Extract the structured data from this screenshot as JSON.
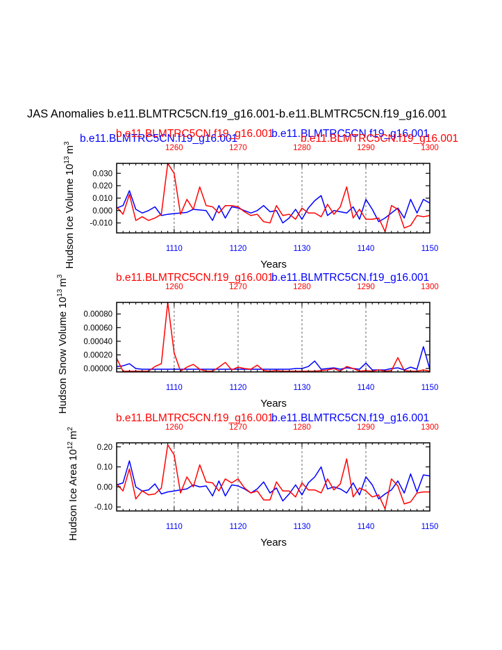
{
  "title": "JAS Anomalies b.e11.BLMTRC5CN.f19_g16.001-b.e11.BLMTRC5CN.f19_g16.001",
  "colors": {
    "series_a": "#0000ff",
    "series_b": "#ff0000",
    "grid": "#999999",
    "axis": "#000000"
  },
  "labels": {
    "xlabel": "Years",
    "series_a_name": "b.e11.BLMTRC5CN.f19_g16.001",
    "series_b_name": "b.e11.BLMTRC5CN.f19_g16.001"
  },
  "chart_data": [
    {
      "type": "line",
      "ylabel": "Hudson Ice Volume 10^13 m^3",
      "ylabel_main": "Hudson Ice Volume 10",
      "ylabel_exp": "13",
      "ylabel_unit": "m",
      "ylabel_unit_exp": "3",
      "xlabel": "Years",
      "xlim": [
        1101,
        1150
      ],
      "ylim": [
        -0.018,
        0.038
      ],
      "bottom_ticks": [
        "1110",
        "1120",
        "1130",
        "1140",
        "1150"
      ],
      "bottom_tick_values": [
        1110,
        1120,
        1130,
        1140,
        1150
      ],
      "top_ticks": [
        "1260",
        "1270",
        "1280",
        "1290",
        "1300"
      ],
      "y_ticks": [
        "0.030",
        "0.020",
        "0.010",
        "0.000",
        "-0.010"
      ],
      "y_tick_values": [
        0.03,
        0.02,
        0.01,
        0.0,
        -0.01
      ],
      "grid_x_values": [
        1110,
        1120,
        1130,
        1140
      ],
      "x": [
        1101,
        1102,
        1103,
        1104,
        1105,
        1106,
        1107,
        1108,
        1109,
        1110,
        1111,
        1112,
        1113,
        1114,
        1115,
        1116,
        1117,
        1118,
        1119,
        1120,
        1121,
        1122,
        1123,
        1124,
        1125,
        1126,
        1127,
        1128,
        1129,
        1130,
        1131,
        1132,
        1133,
        1134,
        1135,
        1136,
        1137,
        1138,
        1139,
        1140,
        1141,
        1142,
        1143,
        1144,
        1145,
        1146,
        1147,
        1148,
        1149,
        1150
      ],
      "series": [
        {
          "name": "b.e11.BLMTRC5CN.f19_g16.001",
          "color": "blue",
          "values": [
            0.002,
            0.004,
            0.016,
            0.001,
            -0.002,
            0.0,
            0.003,
            -0.004,
            -0.003,
            -0.0025,
            -0.002,
            -0.0015,
            0.001,
            0.0005,
            0.0,
            -0.008,
            0.004,
            -0.006,
            0.003,
            0.002,
            0.0,
            -0.002,
            0.0,
            0.004,
            -0.001,
            0.0,
            -0.01,
            -0.006,
            0.001,
            -0.007,
            0.002,
            0.008,
            0.012,
            -0.004,
            0.0,
            -0.001,
            -0.002,
            0.003,
            -0.007,
            0.009,
            0.001,
            -0.009,
            -0.006,
            -0.002,
            0.002,
            -0.006,
            0.009,
            -0.002,
            0.009,
            0.006
          ]
        },
        {
          "name": "b.e11.BLMTRC5CN.f19_g16.001",
          "color": "red",
          "values": [
            0.003,
            -0.003,
            0.013,
            -0.008,
            -0.005,
            -0.008,
            -0.006,
            -0.003,
            0.038,
            0.03,
            -0.003,
            0.009,
            0.001,
            0.019,
            0.004,
            0.003,
            -0.002,
            0.004,
            0.004,
            0.003,
            -0.001,
            -0.004,
            -0.003,
            -0.009,
            -0.01,
            0.004,
            -0.004,
            -0.003,
            -0.007,
            0.002,
            -0.002,
            -0.002,
            -0.005,
            0.005,
            -0.003,
            0.003,
            0.019,
            -0.006,
            0.001,
            -0.007,
            -0.007,
            -0.006,
            -0.017,
            0.004,
            0.001,
            -0.014,
            -0.012,
            -0.004,
            -0.005,
            -0.004
          ]
        }
      ]
    },
    {
      "type": "line",
      "ylabel": "Hudson Snow Volume 10^13 m^3",
      "ylabel_main": "Hudson Snow Volume 10",
      "ylabel_exp": "13",
      "ylabel_unit": "m",
      "ylabel_unit_exp": "3",
      "xlabel": "Years",
      "xlim": [
        1101,
        1150
      ],
      "ylim": [
        -5e-05,
        0.00097
      ],
      "bottom_ticks": [
        "1110",
        "1120",
        "1130",
        "1140",
        "1150"
      ],
      "bottom_tick_values": [
        1110,
        1120,
        1130,
        1140,
        1150
      ],
      "top_ticks": [
        "1260",
        "1270",
        "1280",
        "1290",
        "1300"
      ],
      "y_ticks": [
        "0.00080",
        "0.00060",
        "0.00040",
        "0.00020",
        "0.00000"
      ],
      "y_tick_values": [
        0.0008,
        0.0006,
        0.0004,
        0.0002,
        0.0
      ],
      "grid_x_values": [
        1110,
        1120,
        1130,
        1140
      ],
      "x": [
        1101,
        1102,
        1103,
        1104,
        1105,
        1106,
        1107,
        1108,
        1109,
        1110,
        1111,
        1112,
        1113,
        1114,
        1115,
        1116,
        1117,
        1118,
        1119,
        1120,
        1121,
        1122,
        1123,
        1124,
        1125,
        1126,
        1127,
        1128,
        1129,
        1130,
        1131,
        1132,
        1133,
        1134,
        1135,
        1136,
        1137,
        1138,
        1139,
        1140,
        1141,
        1142,
        1143,
        1144,
        1145,
        1146,
        1147,
        1148,
        1149,
        1150
      ],
      "series": [
        {
          "name": "b.e11.BLMTRC5CN.f19_g16.001",
          "color": "blue",
          "values": [
            3e-05,
            4e-05,
            7e-05,
            0.0,
            -1e-05,
            -1e-05,
            -1e-05,
            -1e-05,
            -1e-05,
            -1e-05,
            -1e-05,
            -1e-05,
            -1e-05,
            -1e-05,
            -1e-05,
            -1e-05,
            -1e-05,
            -1e-05,
            -1e-05,
            -1e-05,
            -1e-05,
            -1e-05,
            -1e-05,
            -1e-05,
            -1e-05,
            -1e-05,
            -1e-05,
            -1e-05,
            0.0,
            0.0,
            3e-05,
            0.00011,
            -1e-05,
            0.0,
            1e-05,
            -1e-05,
            1e-05,
            0.0,
            -1e-05,
            8e-05,
            -2e-05,
            -2e-05,
            -2e-05,
            0.0,
            1e-05,
            -2e-05,
            2e-05,
            -1e-05,
            0.00032,
            -1e-05
          ]
        },
        {
          "name": "b.e11.BLMTRC5CN.f19_g16.001",
          "color": "red",
          "values": [
            0.00015,
            -4e-05,
            -4e-05,
            -4e-05,
            -4e-05,
            -4e-05,
            3e-05,
            7e-05,
            0.00097,
            0.00023,
            -4e-05,
            2e-05,
            6e-05,
            -1e-05,
            -4e-05,
            -4e-05,
            2e-05,
            9e-05,
            -2e-05,
            2e-05,
            0.0,
            -1e-05,
            5e-05,
            -3e-05,
            -4e-05,
            -3e-05,
            -4e-05,
            -4e-05,
            -4e-05,
            -4e-05,
            -4e-05,
            -4e-05,
            -3e-05,
            -2e-05,
            0.0,
            -4e-05,
            3e-05,
            0.0,
            -4e-05,
            -3e-05,
            -4e-05,
            -2e-05,
            -4e-05,
            -3e-05,
            0.00016,
            -3e-05,
            -4e-05,
            -4e-05,
            -2e-05,
            -4e-05
          ]
        }
      ]
    },
    {
      "type": "line",
      "ylabel": "Hudson Ice Area 10^12 m^2",
      "ylabel_main": "Hudson Ice Area 10",
      "ylabel_exp": "12",
      "ylabel_unit": "m",
      "ylabel_unit_exp": "2",
      "xlabel": "Years",
      "xlim": [
        1101,
        1150
      ],
      "ylim": [
        -0.12,
        0.22
      ],
      "bottom_ticks": [
        "1110",
        "1120",
        "1130",
        "1140",
        "1150"
      ],
      "bottom_tick_values": [
        1110,
        1120,
        1130,
        1140,
        1150
      ],
      "top_ticks": [
        "1260",
        "1270",
        "1280",
        "1290",
        "1300"
      ],
      "y_ticks": [
        "0.20",
        "0.10",
        "0.00",
        "-0.10"
      ],
      "y_tick_values": [
        0.2,
        0.1,
        0.0,
        -0.1
      ],
      "grid_x_values": [
        1110,
        1120,
        1130,
        1140
      ],
      "x": [
        1101,
        1102,
        1103,
        1104,
        1105,
        1106,
        1107,
        1108,
        1109,
        1110,
        1111,
        1112,
        1113,
        1114,
        1115,
        1116,
        1117,
        1118,
        1119,
        1120,
        1121,
        1122,
        1123,
        1124,
        1125,
        1126,
        1127,
        1128,
        1129,
        1130,
        1131,
        1132,
        1133,
        1134,
        1135,
        1136,
        1137,
        1138,
        1139,
        1140,
        1141,
        1142,
        1143,
        1144,
        1145,
        1146,
        1147,
        1148,
        1149,
        1150
      ],
      "series": [
        {
          "name": "b.e11.BLMTRC5CN.f19_g16.001",
          "color": "blue",
          "values": [
            0.01,
            0.02,
            0.13,
            0.0,
            -0.02,
            -0.015,
            0.015,
            -0.035,
            -0.025,
            -0.02,
            -0.015,
            -0.01,
            0.01,
            0.0,
            0.005,
            -0.045,
            0.03,
            -0.045,
            0.01,
            0.005,
            -0.01,
            -0.03,
            -0.01,
            0.025,
            -0.03,
            -0.005,
            -0.07,
            -0.035,
            0.01,
            -0.04,
            0.02,
            0.05,
            0.1,
            -0.01,
            0.0,
            -0.01,
            -0.03,
            0.02,
            -0.04,
            0.05,
            0.01,
            -0.06,
            -0.035,
            -0.015,
            0.03,
            -0.03,
            0.065,
            -0.025,
            0.06,
            0.055
          ]
        },
        {
          "name": "b.e11.BLMTRC5CN.f19_g16.001",
          "color": "red",
          "values": [
            0.015,
            -0.02,
            0.09,
            -0.06,
            -0.02,
            -0.04,
            -0.035,
            -0.005,
            0.21,
            0.16,
            -0.03,
            0.05,
            0.0,
            0.11,
            0.025,
            0.02,
            -0.02,
            0.04,
            0.02,
            0.04,
            -0.005,
            -0.03,
            -0.02,
            -0.065,
            -0.065,
            0.025,
            -0.02,
            -0.02,
            -0.05,
            0.02,
            -0.015,
            -0.015,
            -0.03,
            0.04,
            -0.015,
            0.015,
            0.14,
            -0.05,
            -0.005,
            -0.02,
            -0.05,
            -0.04,
            -0.11,
            0.04,
            0.005,
            -0.085,
            -0.075,
            -0.03,
            -0.025,
            -0.025
          ]
        }
      ]
    }
  ]
}
